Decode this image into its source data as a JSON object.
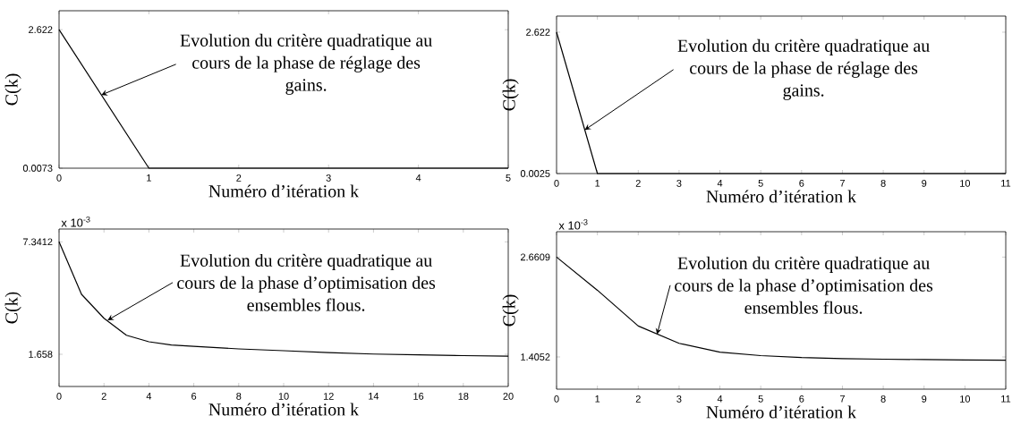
{
  "chart_data": [
    {
      "type": "line",
      "xlabel": "Numéro d’itération k",
      "ylabel": "C(k)",
      "color": "#000000",
      "x": [
        0,
        1,
        2,
        3,
        4,
        5
      ],
      "values": [
        2.622,
        0.0073,
        0.0073,
        0.0073,
        0.0073,
        0.0073
      ],
      "xlim": [
        0,
        5
      ],
      "ylim": [
        0.0073,
        2.98
      ],
      "xticks": [
        0,
        1,
        2,
        3,
        4,
        5
      ],
      "yticks": [
        0.0073,
        2.622
      ],
      "annotations": [
        {
          "text": "Evolution du critère quadratique au cours de la phase de réglage des gains.",
          "x": 0.47,
          "y": 1.39
        }
      ]
    },
    {
      "type": "line",
      "xlabel": "Numéro d’itération k",
      "ylabel": "C(k)",
      "color": "#000000",
      "x": [
        0,
        1,
        2,
        3,
        4,
        5,
        6,
        7,
        8,
        9,
        10,
        11
      ],
      "values": [
        2.622,
        0.0025,
        0.0025,
        0.0025,
        0.0025,
        0.0025,
        0.0025,
        0.0025,
        0.0025,
        0.0025,
        0.0025,
        0.0025
      ],
      "xlim": [
        0,
        11
      ],
      "ylim": [
        0.0025,
        2.92
      ],
      "xticks": [
        0,
        1,
        2,
        3,
        4,
        5,
        6,
        7,
        8,
        9,
        10,
        11
      ],
      "yticks": [
        0.0025,
        2.622
      ],
      "annotations": [
        {
          "text": "Evolution du critère quadratique au cours de la phase de réglage des gains.",
          "x": 0.69,
          "y": 0.81
        }
      ]
    },
    {
      "type": "line",
      "xlabel": "Numéro d’itération k",
      "ylabel": "C(k)",
      "color": "#000000",
      "x": [
        0,
        1,
        2,
        3,
        4,
        5,
        6,
        8,
        10,
        12,
        14,
        16,
        18,
        20
      ],
      "values": [
        7.3412,
        4.69,
        3.48,
        2.62,
        2.29,
        2.13,
        2.06,
        1.93,
        1.84,
        1.74,
        1.67,
        1.63,
        1.59,
        1.56
      ],
      "xlim": [
        0,
        20
      ],
      "ylim": [
        0.03,
        7.99
      ],
      "xticks": [
        0,
        2,
        4,
        6,
        8,
        10,
        12,
        14,
        16,
        18,
        20
      ],
      "yticks": [
        1.658,
        7.3412
      ],
      "annotations": [
        {
          "text": "Evolution du critère quadratique au cours de la phase d’optimisation des ensembles flous.",
          "x": 2.16,
          "y": 3.38
        },
        "x 10$^{-3}$"
      ]
    },
    {
      "type": "line",
      "xlabel": "Numéro d’itération k",
      "ylabel": "C(k)",
      "color": "#000000",
      "x": [
        0,
        1,
        2,
        3,
        4,
        5,
        6,
        7,
        8,
        9,
        10,
        11
      ],
      "values": [
        2.6609,
        2.244,
        1.794,
        1.577,
        1.466,
        1.422,
        1.397,
        1.385,
        1.377,
        1.372,
        1.368,
        1.364
      ],
      "xlim": [
        0,
        11
      ],
      "ylim": [
        1.0,
        2.98
      ],
      "xticks": [
        0,
        1,
        2,
        3,
        4,
        5,
        6,
        7,
        8,
        9,
        10,
        11
      ],
      "yticks": [
        1.4052,
        2.6609
      ],
      "annotations": [
        {
          "text": "Evolution du critère quadratique au cours de la phase d’optimisation des ensembles flous.",
          "x": 2.46,
          "y": 1.69
        },
        "x 10$^{-3}$"
      ]
    }
  ]
}
